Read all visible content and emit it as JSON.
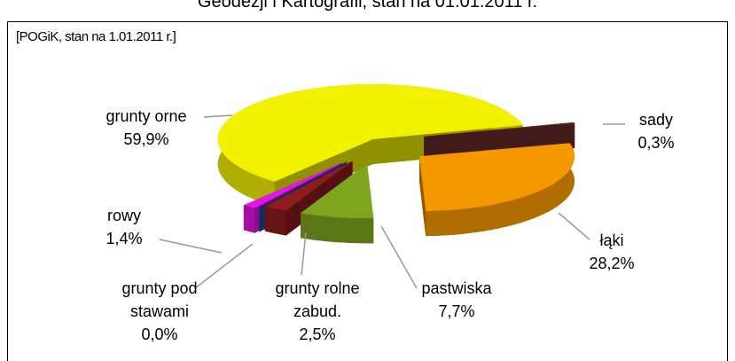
{
  "chart_data": {
    "type": "pie3d",
    "title": "Geodezji i Kartografii, stan na 01.01.2011 r.",
    "subtitle": "[POGiK, stan na 1.01.2011 r.]",
    "categories": [
      "grunty orne",
      "sady",
      "łąki",
      "pastwiska",
      "grunty rolne zabud.",
      "grunty pod stawami",
      "rowy"
    ],
    "values": [
      59.9,
      0.3,
      28.2,
      7.7,
      2.5,
      0.0,
      1.4
    ],
    "value_labels": [
      "59,9%",
      "0,3%",
      "28,2%",
      "7,7%",
      "2,5%",
      "0,0%",
      "1,4%"
    ],
    "colors": [
      "#f2f200",
      "#6e2c2c",
      "#f59800",
      "#7fa51e",
      "#8e1c1c",
      "#2a44a8",
      "#e414e4"
    ]
  }
}
